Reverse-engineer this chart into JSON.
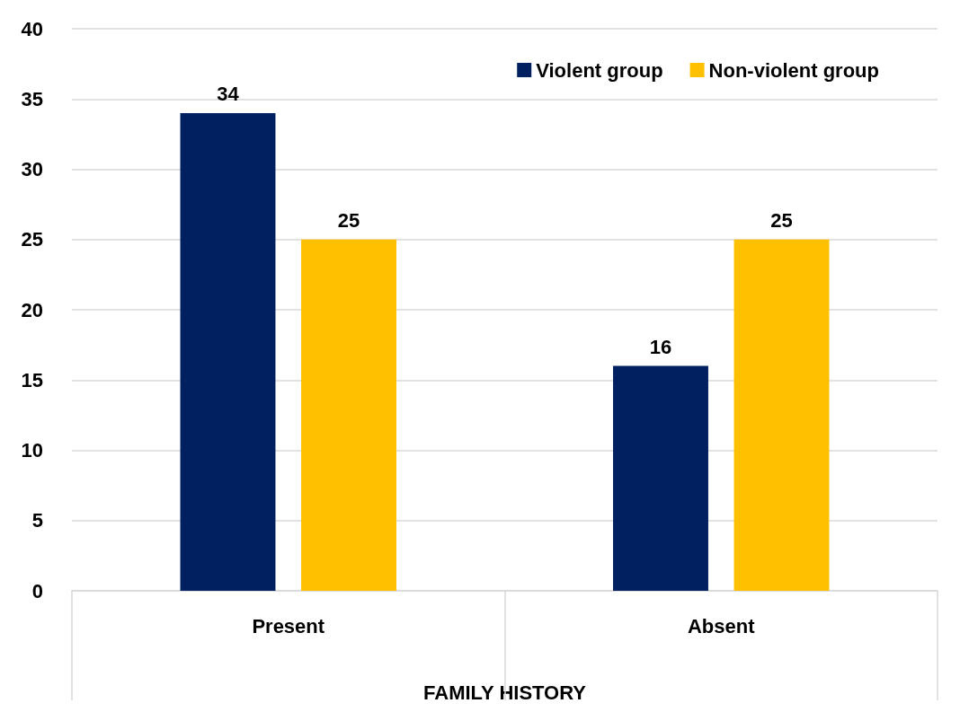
{
  "chart_data": {
    "type": "bar",
    "xlabel": "FAMILY HISTORY",
    "categories": [
      "Present",
      "Absent"
    ],
    "series": [
      {
        "name": "Violent group",
        "color": "#002060",
        "values": [
          34,
          16
        ]
      },
      {
        "name": "Non-violent group",
        "color": "#ffc000",
        "values": [
          25,
          25
        ]
      }
    ],
    "ylim": [
      0,
      40
    ],
    "yticks": [
      0,
      5,
      10,
      15,
      20,
      25,
      30,
      35,
      40
    ],
    "grid": "y",
    "legend": "top right",
    "data_labels": true
  }
}
